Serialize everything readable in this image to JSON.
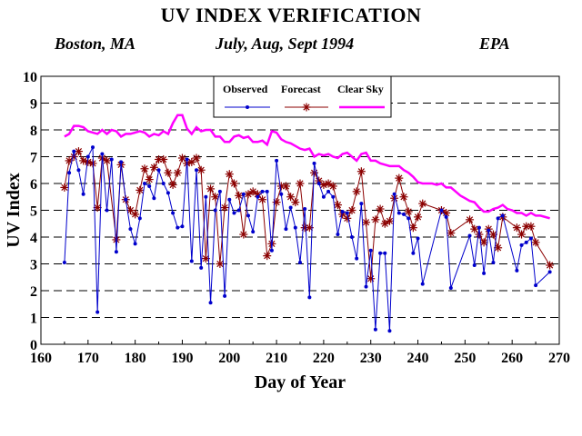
{
  "chart_data": {
    "type": "line",
    "title": "UV INDEX VERIFICATION",
    "subtitle_left": "Boston, MA",
    "subtitle_center": "July, Aug, Sept 1994",
    "subtitle_right": "EPA",
    "xlabel": "Day of Year",
    "ylabel": "UV Index",
    "xlim": [
      160,
      270
    ],
    "ylim": [
      0,
      10
    ],
    "xticks": [
      160,
      170,
      180,
      190,
      200,
      210,
      220,
      230,
      240,
      250,
      260,
      270
    ],
    "yticks": [
      0,
      1,
      2,
      3,
      4,
      5,
      6,
      7,
      8,
      9,
      10
    ],
    "grid": "horizontal dashed",
    "legend": "top-center",
    "colors": {
      "observed": "#0000cc",
      "forecast": "#8b0000",
      "clear_sky": "#ff00ff"
    },
    "series": [
      {
        "name": "Observed",
        "marker": "dot",
        "x": [
          165,
          166,
          167,
          168,
          169,
          170,
          171,
          172,
          173,
          174,
          175,
          176,
          177,
          178,
          179,
          180,
          181,
          182,
          183,
          184,
          185,
          186,
          187,
          188,
          189,
          190,
          191,
          192,
          193,
          194,
          195,
          196,
          197,
          198,
          199,
          200,
          201,
          202,
          203,
          204,
          205,
          206,
          207,
          208,
          209,
          210,
          211,
          212,
          213,
          214,
          215,
          216,
          217,
          218,
          219,
          220,
          221,
          222,
          223,
          224,
          225,
          226,
          227,
          228,
          229,
          230,
          231,
          232,
          233,
          234,
          235,
          236,
          237,
          238,
          239,
          240,
          241,
          245,
          246,
          247,
          251,
          252,
          253,
          254,
          255,
          256,
          257,
          258,
          261,
          262,
          263,
          264,
          265,
          268
        ],
        "y": [
          3.05,
          6.4,
          7.2,
          6.5,
          5.6,
          7.0,
          7.35,
          1.2,
          7.1,
          5.0,
          6.9,
          3.45,
          6.8,
          5.4,
          4.3,
          3.75,
          4.7,
          6.0,
          5.9,
          5.45,
          6.5,
          6.0,
          5.65,
          4.9,
          4.35,
          4.4,
          6.9,
          3.1,
          6.5,
          2.85,
          5.5,
          1.55,
          5.0,
          5.7,
          1.8,
          5.4,
          4.9,
          5.0,
          5.6,
          4.8,
          4.2,
          5.5,
          5.7,
          5.7,
          3.5,
          6.85,
          5.6,
          4.3,
          5.1,
          4.35,
          3.05,
          5.05,
          1.75,
          6.75,
          6.0,
          5.5,
          5.7,
          5.5,
          4.1,
          4.95,
          4.9,
          4.0,
          3.2,
          5.25,
          2.15,
          3.5,
          0.55,
          3.4,
          3.4,
          0.5,
          5.6,
          4.9,
          4.85,
          4.7,
          3.4,
          3.95,
          2.25,
          5.0,
          4.75,
          2.1,
          4.05,
          2.95,
          4.35,
          2.65,
          4.25,
          3.05,
          4.7,
          4.8,
          2.75,
          3.7,
          3.8,
          3.95,
          2.2,
          2.7
        ]
      },
      {
        "name": "Forecast",
        "marker": "asterisk",
        "x": [
          165,
          166,
          167,
          168,
          169,
          170,
          171,
          172,
          173,
          174,
          176,
          177,
          178,
          179,
          180,
          181,
          182,
          183,
          184,
          185,
          186,
          187,
          188,
          189,
          190,
          191,
          192,
          193,
          194,
          195,
          196,
          197,
          198,
          199,
          200,
          201,
          202,
          203,
          204,
          205,
          206,
          207,
          208,
          209,
          210,
          211,
          212,
          213,
          214,
          215,
          216,
          217,
          218,
          219,
          220,
          221,
          222,
          223,
          224,
          225,
          226,
          227,
          228,
          229,
          230,
          231,
          232,
          233,
          234,
          235,
          236,
          237,
          238,
          239,
          240,
          241,
          245,
          246,
          247,
          251,
          252,
          253,
          254,
          255,
          256,
          257,
          258,
          261,
          262,
          263,
          264,
          265,
          268
        ],
        "y": [
          5.85,
          6.85,
          7.0,
          7.2,
          6.85,
          6.8,
          6.75,
          5.1,
          6.95,
          6.85,
          3.9,
          6.7,
          5.4,
          5.0,
          4.85,
          5.75,
          6.55,
          6.15,
          6.6,
          6.9,
          6.9,
          6.4,
          5.95,
          6.4,
          6.95,
          6.75,
          6.8,
          6.95,
          6.5,
          3.2,
          5.8,
          5.5,
          3.0,
          5.1,
          6.35,
          6.0,
          5.55,
          4.1,
          5.6,
          5.7,
          5.6,
          5.4,
          3.3,
          3.75,
          5.3,
          5.9,
          5.9,
          5.5,
          5.3,
          6.0,
          4.35,
          4.35,
          6.4,
          6.1,
          5.95,
          6.0,
          5.9,
          5.2,
          4.85,
          4.7,
          5.0,
          5.7,
          6.45,
          4.55,
          2.45,
          4.65,
          5.05,
          4.5,
          4.6,
          5.45,
          6.2,
          5.5,
          4.95,
          4.35,
          4.75,
          5.25,
          5.0,
          4.9,
          4.15,
          4.65,
          4.3,
          4.1,
          3.8,
          4.3,
          4.1,
          3.6,
          4.75,
          4.35,
          4.1,
          4.4,
          4.4,
          3.8,
          2.95
        ]
      },
      {
        "name": "Clear Sky",
        "marker": "none",
        "x": [
          165,
          166,
          167,
          168,
          169,
          170,
          171,
          172,
          173,
          174,
          175,
          176,
          177,
          178,
          179,
          180,
          181,
          182,
          183,
          184,
          185,
          186,
          187,
          188,
          189,
          190,
          191,
          192,
          193,
          194,
          195,
          196,
          197,
          198,
          199,
          200,
          201,
          202,
          203,
          204,
          205,
          206,
          207,
          208,
          209,
          210,
          211,
          212,
          213,
          214,
          215,
          216,
          217,
          218,
          219,
          220,
          221,
          222,
          223,
          224,
          225,
          226,
          227,
          228,
          229,
          230,
          231,
          232,
          233,
          234,
          235,
          236,
          237,
          238,
          239,
          240,
          241,
          242,
          243,
          244,
          245,
          246,
          247,
          248,
          249,
          250,
          251,
          252,
          253,
          254,
          255,
          256,
          257,
          258,
          259,
          260,
          261,
          262,
          263,
          264,
          265,
          266,
          267,
          268
        ],
        "y": [
          7.75,
          7.85,
          8.15,
          8.15,
          8.1,
          7.95,
          7.9,
          7.85,
          8.0,
          7.85,
          8.0,
          7.95,
          7.75,
          7.85,
          7.85,
          7.9,
          7.95,
          7.9,
          7.75,
          7.85,
          7.8,
          7.95,
          7.85,
          8.25,
          8.55,
          8.55,
          8.05,
          7.85,
          8.1,
          7.95,
          8.0,
          8.0,
          7.75,
          7.75,
          7.55,
          7.55,
          7.75,
          7.8,
          7.7,
          7.75,
          7.55,
          7.55,
          7.6,
          7.45,
          7.95,
          7.9,
          7.65,
          7.55,
          7.5,
          7.4,
          7.3,
          7.25,
          7.3,
          7.0,
          7.1,
          7.05,
          7.1,
          7.0,
          6.95,
          7.1,
          7.15,
          7.0,
          6.85,
          7.1,
          7.15,
          6.85,
          6.85,
          6.75,
          6.7,
          6.65,
          6.65,
          6.65,
          6.5,
          6.4,
          6.25,
          6.05,
          6.0,
          6.0,
          6.0,
          5.95,
          6.0,
          5.85,
          5.85,
          5.7,
          5.55,
          5.45,
          5.35,
          5.3,
          5.1,
          4.95,
          4.95,
          5.05,
          5.1,
          5.2,
          5.05,
          5.0,
          4.9,
          4.9,
          4.8,
          4.9,
          4.8,
          4.8,
          4.75,
          4.7
        ]
      }
    ]
  }
}
